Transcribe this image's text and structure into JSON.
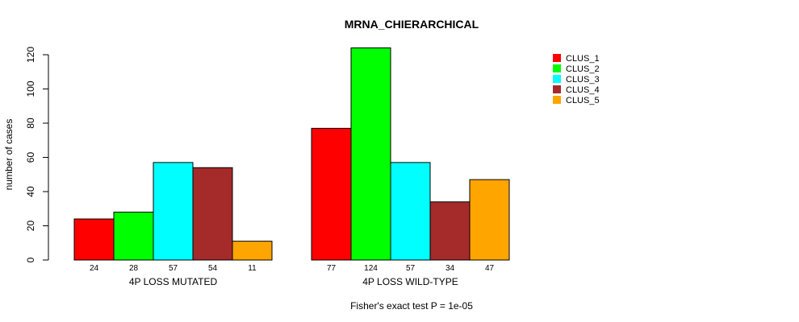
{
  "chart_data": {
    "type": "bar",
    "title": "MRNA_CHIERARCHICAL",
    "xlabel": "",
    "ylabel": "number of cases",
    "subtitle": "Fisher's exact test P = 1e-05",
    "ylim": [
      0,
      125
    ],
    "yticks": [
      0,
      20,
      40,
      60,
      80,
      100,
      120
    ],
    "groups": [
      "4P LOSS MUTATED",
      "4P LOSS WILD-TYPE"
    ],
    "series": [
      {
        "name": "CLUS_1",
        "color": "#ff0000",
        "values": [
          24,
          77
        ]
      },
      {
        "name": "CLUS_2",
        "color": "#00ff00",
        "values": [
          28,
          124
        ]
      },
      {
        "name": "CLUS_3",
        "color": "#00ffff",
        "values": [
          57,
          57
        ]
      },
      {
        "name": "CLUS_4",
        "color": "#a52a2a",
        "values": [
          54,
          34
        ]
      },
      {
        "name": "CLUS_5",
        "color": "#ffa500",
        "values": [
          11,
          47
        ]
      }
    ],
    "legend_position": "top-right",
    "grid": false
  }
}
